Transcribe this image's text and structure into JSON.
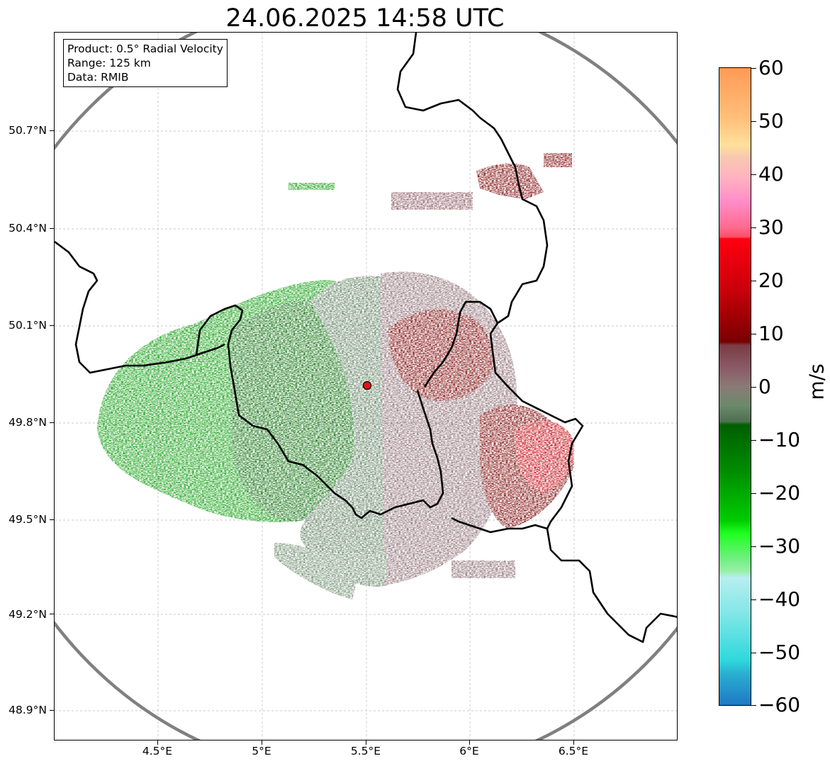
{
  "title": "24.06.2025 14:58 UTC",
  "info": {
    "product": "Product: 0.5° Radial Velocity",
    "range": "Range: 125 km",
    "data": "Data: RMIB"
  },
  "axes": {
    "lat_labels": [
      "50.7°N",
      "50.4°N",
      "50.1°N",
      "49.8°N",
      "49.5°N",
      "49.2°N",
      "48.9°N"
    ],
    "lon_labels": [
      "4.5°E",
      "5°E",
      "5.5°E",
      "6°E",
      "6.5°E"
    ]
  },
  "colorbar": {
    "unit": "m/s",
    "tick_labels": [
      "60",
      "50",
      "40",
      "30",
      "20",
      "10",
      "0",
      "−10",
      "−20",
      "−30",
      "−40",
      "−50",
      "−60"
    ],
    "range": [
      -60,
      60
    ]
  },
  "colors": {
    "range_ring": "#808080",
    "radar_site": "#e8111a",
    "inbound_strong": "#0a9a0a",
    "inbound_weak": "#5f8060",
    "outbound_weak": "#8a6a72",
    "outbound_strong": "#7a0000"
  }
}
